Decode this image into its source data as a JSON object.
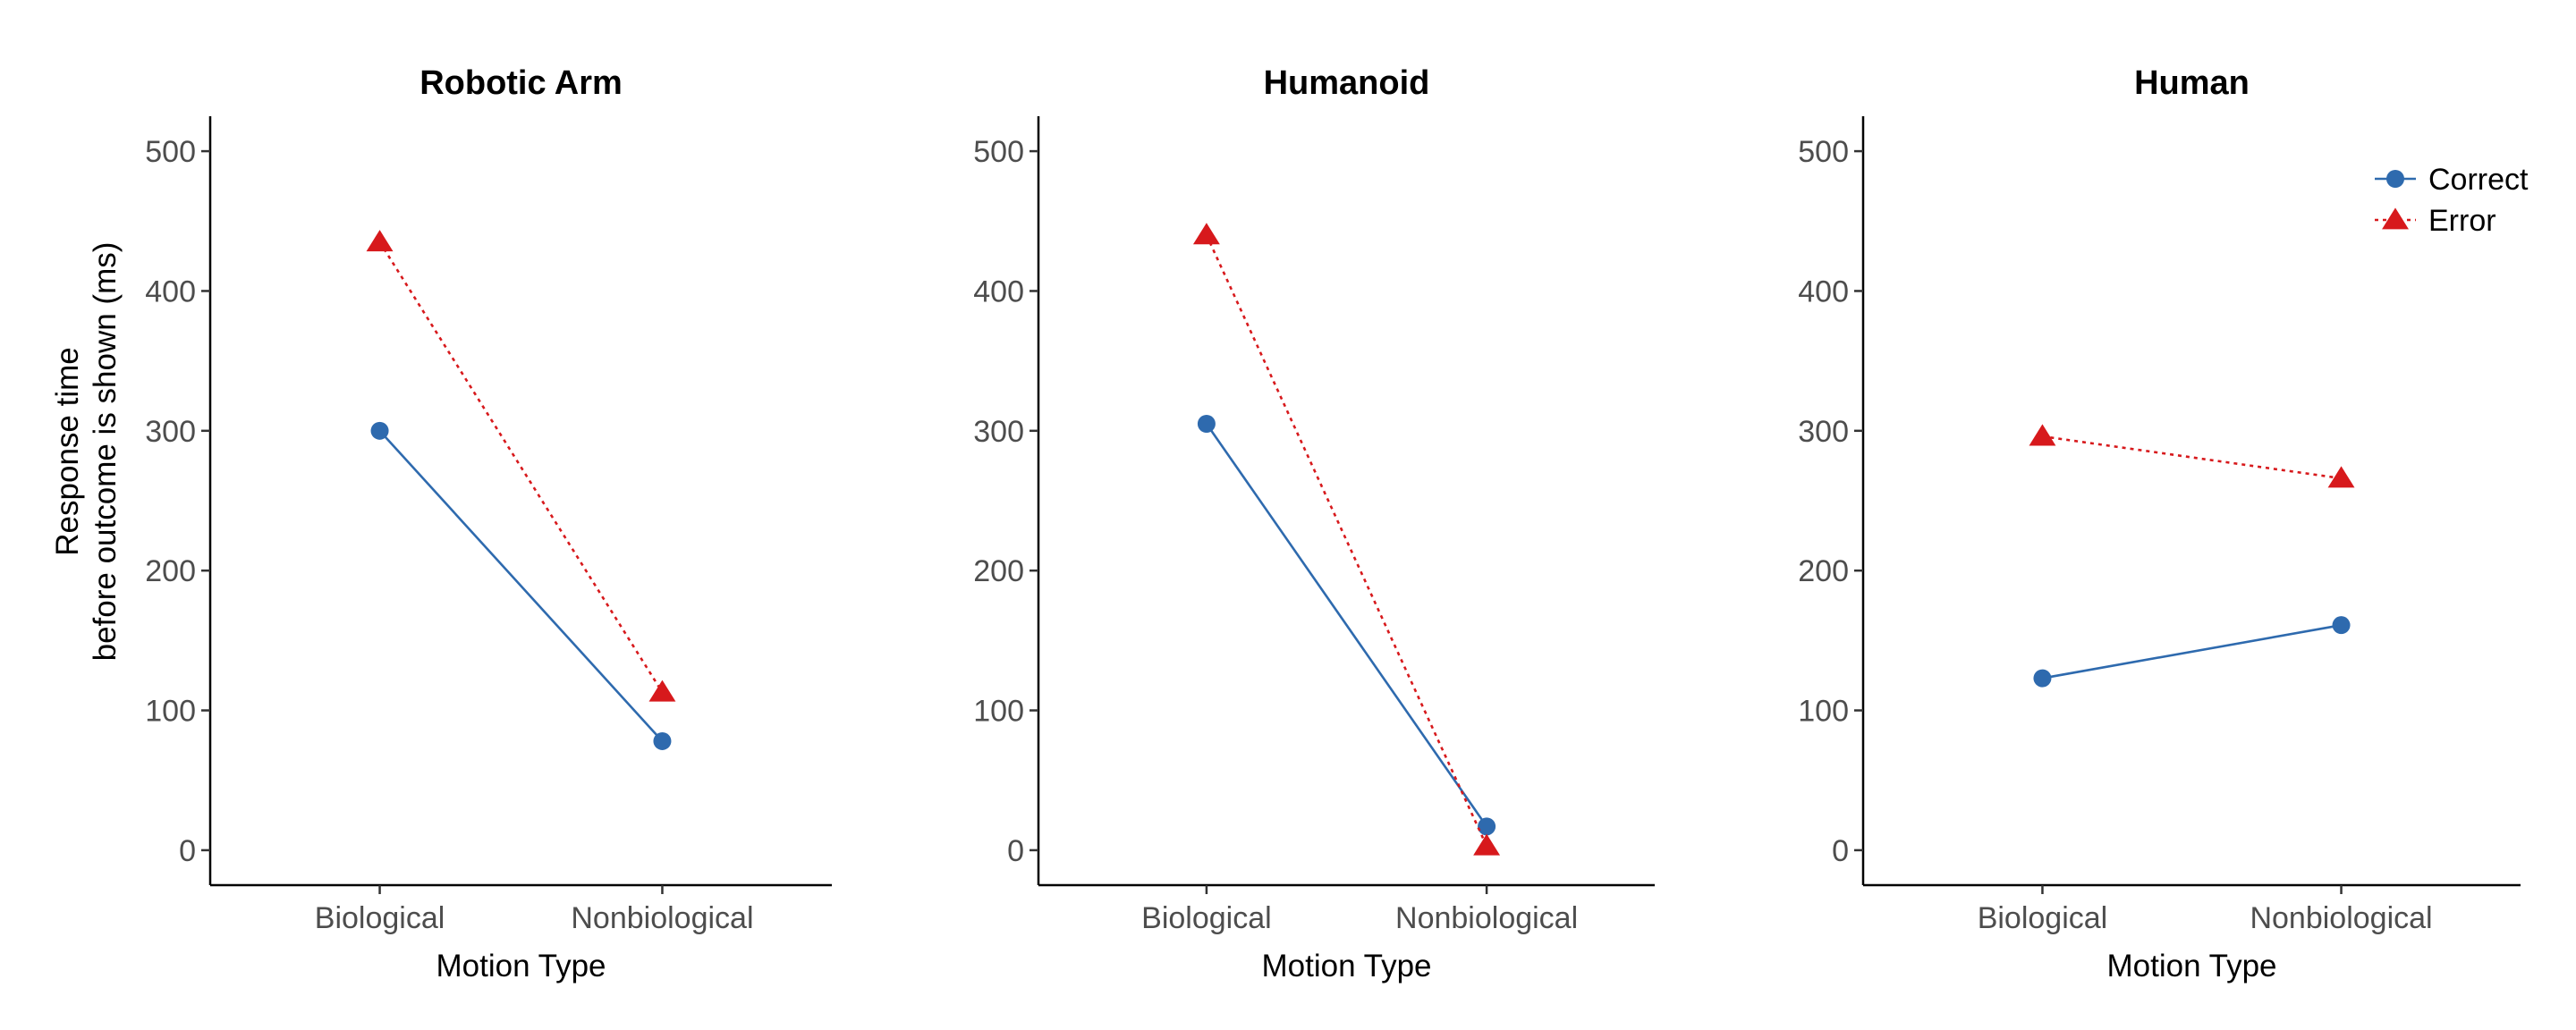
{
  "chart_data": [
    {
      "type": "line",
      "title": "Robotic Arm",
      "xlabel": "Motion Type",
      "ylabel_lines": [
        "Response time",
        "before outcome is shown (ms)"
      ],
      "categories": [
        "Biological",
        "Nonbiological"
      ],
      "yticks": [
        0,
        100,
        200,
        300,
        400,
        500
      ],
      "ylim": [
        -25,
        525
      ],
      "grid": false,
      "series": [
        {
          "name": "Correct",
          "values": [
            300,
            78
          ],
          "color": "#2E6AAE",
          "marker": "circle",
          "linestyle": "solid"
        },
        {
          "name": "Error",
          "values": [
            435,
            113
          ],
          "color": "#D7191C",
          "marker": "triangle",
          "linestyle": "dotted"
        }
      ]
    },
    {
      "type": "line",
      "title": "Humanoid",
      "xlabel": "Motion Type",
      "categories": [
        "Biological",
        "Nonbiological"
      ],
      "yticks": [
        0,
        100,
        200,
        300,
        400,
        500
      ],
      "ylim": [
        -25,
        525
      ],
      "grid": false,
      "series": [
        {
          "name": "Correct",
          "values": [
            305,
            17
          ],
          "color": "#2E6AAE",
          "marker": "circle",
          "linestyle": "solid"
        },
        {
          "name": "Error",
          "values": [
            440,
            3
          ],
          "color": "#D7191C",
          "marker": "triangle",
          "linestyle": "dotted"
        }
      ]
    },
    {
      "type": "line",
      "title": "Human",
      "xlabel": "Motion Type",
      "categories": [
        "Biological",
        "Nonbiological"
      ],
      "yticks": [
        0,
        100,
        200,
        300,
        400,
        500
      ],
      "ylim": [
        -25,
        525
      ],
      "grid": false,
      "legend_position": "top-right",
      "series": [
        {
          "name": "Correct",
          "values": [
            123,
            161
          ],
          "color": "#2E6AAE",
          "marker": "circle",
          "linestyle": "solid"
        },
        {
          "name": "Error",
          "values": [
            296,
            266
          ],
          "color": "#D7191C",
          "marker": "triangle",
          "linestyle": "dotted"
        }
      ]
    }
  ],
  "legend": {
    "entries": [
      {
        "label": "Correct",
        "color": "#2E6AAE",
        "marker": "circle",
        "linestyle": "solid"
      },
      {
        "label": "Error",
        "color": "#D7191C",
        "marker": "triangle",
        "linestyle": "dotted"
      }
    ]
  }
}
